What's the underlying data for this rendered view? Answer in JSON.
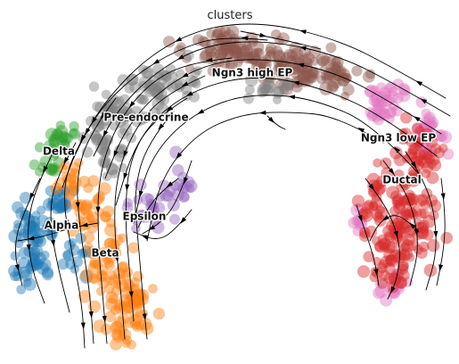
{
  "chart_data": {
    "type": "scatter",
    "title": "clusters",
    "xlabel": "",
    "ylabel": "",
    "grid": false,
    "axes_visible": false,
    "overlay": "velocity-streamlines",
    "clusters": [
      {
        "name": "Ductal",
        "color": "#d62728"
      },
      {
        "name": "Ngn3 low EP",
        "color": "#e377c2"
      },
      {
        "name": "Ngn3 high EP",
        "color": "#8c564b"
      },
      {
        "name": "Pre-endocrine",
        "color": "#7f7f7f"
      },
      {
        "name": "Beta",
        "color": "#ff7f0e"
      },
      {
        "name": "Alpha",
        "color": "#1f77b4"
      },
      {
        "name": "Delta",
        "color": "#2ca02c"
      },
      {
        "name": "Epsilon",
        "color": "#9467bd"
      }
    ]
  }
}
